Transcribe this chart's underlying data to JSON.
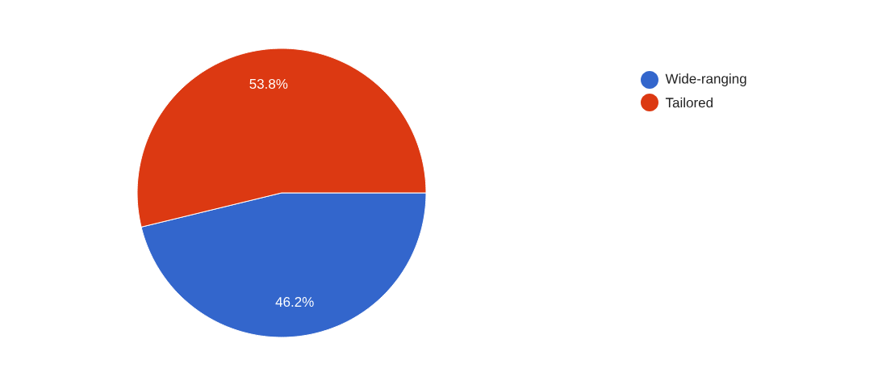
{
  "chart_data": {
    "type": "pie",
    "categories": [
      "Wide-ranging",
      "Tailored"
    ],
    "values": [
      46.2,
      53.8
    ],
    "colors": [
      "#3366cc",
      "#dc3912"
    ],
    "value_labels": [
      "46.2%",
      "53.8%"
    ],
    "legend": "top right"
  }
}
